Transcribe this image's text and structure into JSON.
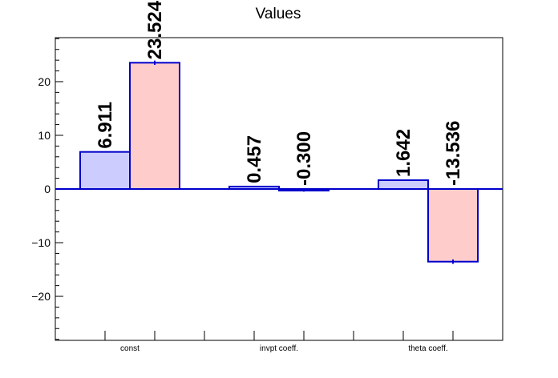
{
  "chart_data": {
    "type": "bar",
    "title": "Values",
    "xlabel": "",
    "ylabel": "",
    "categories": [
      "const",
      "invpt coeff.",
      "theta coeff."
    ],
    "series": [
      {
        "values": [
          6.911,
          0.457,
          1.642
        ],
        "labels": [
          "6.911",
          "0.457",
          "1.642"
        ],
        "color": "#ccccff"
      },
      {
        "values": [
          23.524,
          -0.3,
          -13.536
        ],
        "labels": [
          "23.524",
          "-0.300",
          "-13.536"
        ],
        "errors": [
          0.4,
          0.2,
          0.4
        ],
        "color": "#ffcccc"
      }
    ],
    "ylim": [
      -28.2,
      28.2
    ],
    "y_ticks": [
      -20,
      -10,
      0,
      10,
      20
    ],
    "y_tick_labels": [
      "−20",
      "−10",
      "0",
      "10",
      "20"
    ],
    "legend": "none",
    "grid": false,
    "bar_edge_color": "#0000cc",
    "zero_line_color": "#0000cc"
  }
}
